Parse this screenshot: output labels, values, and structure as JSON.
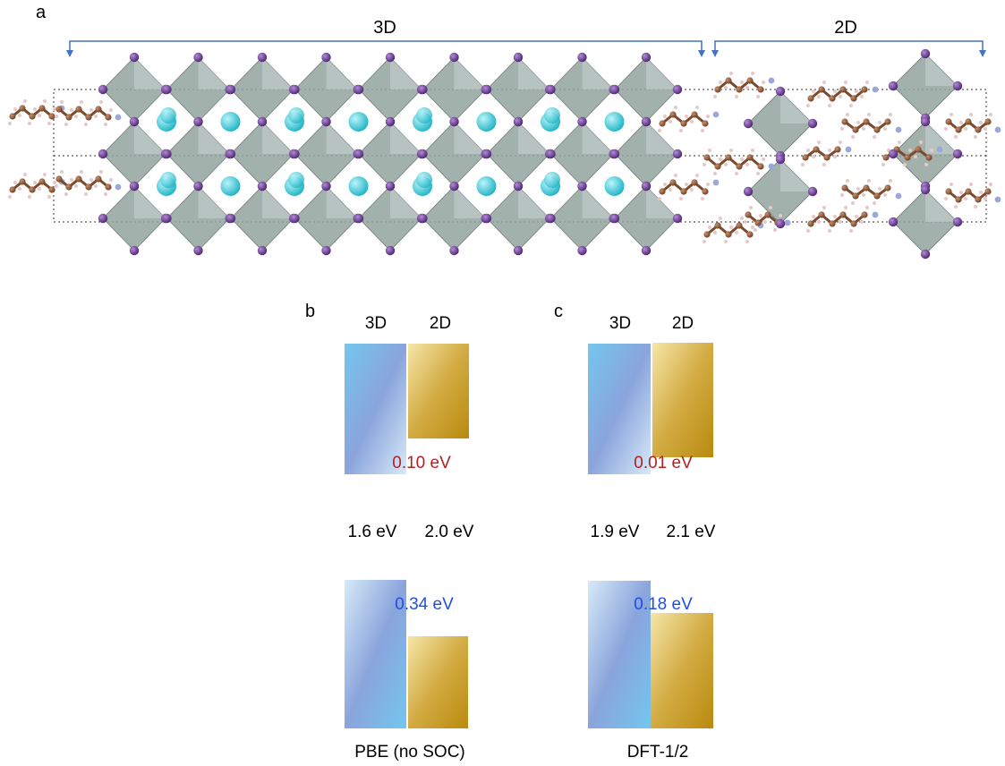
{
  "panel_a": {
    "letter": "a",
    "label_3d": "3D",
    "label_2d": "2D"
  },
  "panel_b": {
    "letter": "b",
    "col_3d": "3D",
    "col_2d": "2D",
    "cb_offset": "0.10 eV",
    "gap_3d": "1.6 eV",
    "gap_2d": "2.0 eV",
    "vb_offset": "0.34 eV",
    "method": "PBE (no SOC)"
  },
  "panel_c": {
    "letter": "c",
    "col_3d": "3D",
    "col_2d": "2D",
    "cb_offset": "0.01 eV",
    "gap_3d": "1.9 eV",
    "gap_2d": "2.1 eV",
    "vb_offset": "0.18 eV",
    "method": "DFT-1/2"
  },
  "colors": {
    "bracket": "#4472c4",
    "cb_offset_text": "#b22222",
    "vb_offset_text": "#1f4fe0",
    "octahedron": "#8e9c98",
    "iodine": "#6a3d8f",
    "cation": "#3cc8d6",
    "carbon": "#8b5a3c",
    "nitrogen": "#9aa7d8",
    "hydrogen": "#e8c7c7"
  }
}
